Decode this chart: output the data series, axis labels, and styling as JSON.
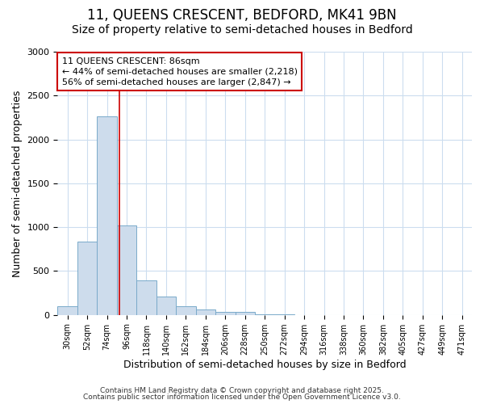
{
  "title_line1": "11, QUEENS CRESCENT, BEDFORD, MK41 9BN",
  "title_line2": "Size of property relative to semi-detached houses in Bedford",
  "xlabel": "Distribution of semi-detached houses by size in Bedford",
  "ylabel": "Number of semi-detached properties",
  "bar_labels": [
    "30sqm",
    "52sqm",
    "74sqm",
    "96sqm",
    "118sqm",
    "140sqm",
    "162sqm",
    "184sqm",
    "206sqm",
    "228sqm",
    "250sqm",
    "272sqm",
    "294sqm",
    "316sqm",
    "338sqm",
    "360sqm",
    "382sqm",
    "405sqm",
    "427sqm",
    "449sqm",
    "471sqm"
  ],
  "bar_values": [
    100,
    840,
    2260,
    1020,
    395,
    205,
    100,
    60,
    35,
    30,
    5,
    5,
    2,
    2,
    1,
    1,
    0,
    0,
    0,
    0,
    0
  ],
  "bar_color": "#cddcec",
  "bar_edge_color": "#7aaaca",
  "ylim": [
    0,
    3000
  ],
  "yticks": [
    0,
    500,
    1000,
    1500,
    2000,
    2500,
    3000
  ],
  "red_line_x": 2.636,
  "red_line_color": "#cc0000",
  "annotation_text": "11 QUEENS CRESCENT: 86sqm\n← 44% of semi-detached houses are smaller (2,218)\n56% of semi-detached houses are larger (2,847) →",
  "annotation_box_color": "#ffffff",
  "annotation_box_edge_color": "#cc0000",
  "footer_line1": "Contains HM Land Registry data © Crown copyright and database right 2025.",
  "footer_line2": "Contains public sector information licensed under the Open Government Licence v3.0.",
  "background_color": "#ffffff",
  "plot_bg_color": "#ffffff",
  "grid_color": "#ccddef",
  "title_fontsize": 12,
  "subtitle_fontsize": 10,
  "tick_fontsize": 8,
  "label_fontsize": 9,
  "annotation_fontsize": 8
}
